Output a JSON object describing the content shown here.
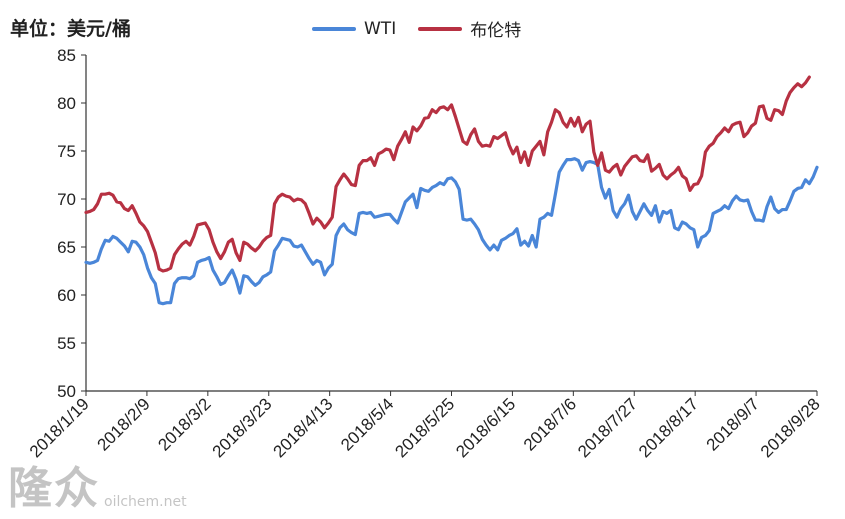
{
  "unit_label": "单位：美元/桶",
  "watermark": {
    "logo": "隆众",
    "url": "oilchem.net"
  },
  "colors": {
    "wti": "#4a86d8",
    "brent": "#b73142",
    "axis": "#333333"
  },
  "chart_data": {
    "type": "line",
    "xlabel": "",
    "ylabel": "",
    "ylim": [
      50,
      85
    ],
    "yticks": [
      50,
      55,
      60,
      65,
      70,
      75,
      80,
      85
    ],
    "xticks": [
      "2018/1/19",
      "2018/2/9",
      "2018/3/2",
      "2018/3/23",
      "2018/4/13",
      "2018/5/4",
      "2018/5/25",
      "2018/6/15",
      "2018/7/6",
      "2018/7/27",
      "2018/8/17",
      "2018/9/7",
      "2018/9/28"
    ],
    "legend_position": "top-center",
    "grid": false,
    "series": [
      {
        "name": "WTI",
        "color": "#4a86d8",
        "values": [
          63.4,
          63.3,
          63.4,
          63.6,
          64.8,
          65.7,
          65.6,
          66.1,
          65.9,
          65.5,
          65.1,
          64.5,
          65.6,
          65.5,
          65.0,
          64.2,
          62.8,
          61.8,
          61.2,
          59.2,
          59.1,
          59.2,
          59.2,
          61.2,
          61.7,
          61.8,
          61.8,
          61.7,
          62.0,
          63.4,
          63.6,
          63.7,
          63.9,
          62.6,
          61.9,
          61.1,
          61.3,
          62.0,
          62.6,
          61.6,
          60.2,
          62.0,
          61.9,
          61.4,
          61.0,
          61.3,
          61.9,
          62.1,
          62.4,
          64.6,
          65.2,
          65.9,
          65.8,
          65.7,
          65.1,
          65.0,
          65.2,
          64.5,
          63.8,
          63.2,
          63.6,
          63.4,
          62.1,
          62.8,
          63.2,
          66.2,
          67.0,
          67.4,
          66.8,
          66.5,
          66.3,
          68.5,
          68.6,
          68.5,
          68.6,
          68.1,
          68.2,
          68.3,
          68.4,
          68.4,
          67.9,
          67.5,
          68.6,
          69.7,
          70.1,
          70.5,
          69.1,
          71.1,
          70.9,
          70.8,
          71.2,
          71.4,
          71.7,
          71.5,
          72.1,
          72.2,
          71.8,
          71.0,
          67.9,
          67.8,
          67.9,
          67.4,
          66.8,
          65.8,
          65.2,
          64.7,
          65.2,
          64.7,
          65.7,
          65.9,
          66.2,
          66.4,
          66.9,
          65.2,
          65.6,
          65.1,
          66.2,
          65.0,
          67.9,
          68.1,
          68.5,
          68.3,
          70.5,
          72.8,
          73.5,
          74.1,
          74.1,
          74.2,
          74.0,
          73.0,
          73.8,
          73.9,
          73.8,
          73.6,
          71.2,
          70.1,
          71.0,
          68.8,
          68.1,
          69.0,
          69.5,
          70.4,
          68.7,
          67.9,
          68.7,
          69.5,
          68.8,
          68.3,
          69.3,
          67.6,
          68.7,
          68.5,
          68.8,
          67.0,
          66.8,
          67.6,
          67.4,
          67.0,
          66.8,
          65.0,
          66.0,
          66.2,
          66.7,
          68.5,
          68.7,
          68.9,
          69.3,
          69.0,
          69.8,
          70.3,
          69.9,
          69.8,
          69.9,
          68.7,
          67.8,
          67.8,
          67.7,
          69.2,
          70.2,
          69.0,
          68.6,
          68.9,
          68.9,
          69.8,
          70.8,
          71.1,
          71.2,
          72.0,
          71.6,
          72.3,
          73.3
        ]
      },
      {
        "name": "布伦特",
        "color": "#b73142",
        "values": [
          68.6,
          68.7,
          68.9,
          69.5,
          70.5,
          70.5,
          70.6,
          70.4,
          69.7,
          69.6,
          69.0,
          68.8,
          69.3,
          68.5,
          67.6,
          67.2,
          66.6,
          65.5,
          64.4,
          62.7,
          62.5,
          62.6,
          62.8,
          64.2,
          64.8,
          65.3,
          65.6,
          65.2,
          66.1,
          67.3,
          67.4,
          67.5,
          66.8,
          65.5,
          64.5,
          63.8,
          64.5,
          65.5,
          65.8,
          64.4,
          63.6,
          65.5,
          65.3,
          64.9,
          64.6,
          65.0,
          65.6,
          66.0,
          66.2,
          69.5,
          70.2,
          70.5,
          70.3,
          70.2,
          69.8,
          70.0,
          69.9,
          69.5,
          68.5,
          67.4,
          68.0,
          67.6,
          67.0,
          67.5,
          68.1,
          71.3,
          72.0,
          72.6,
          72.1,
          71.5,
          71.4,
          73.5,
          74.0,
          74.0,
          74.3,
          73.5,
          74.7,
          74.9,
          75.2,
          75.1,
          74.1,
          75.5,
          76.2,
          77.0,
          75.9,
          77.5,
          77.1,
          77.6,
          78.4,
          78.5,
          79.3,
          79.0,
          79.5,
          79.6,
          79.3,
          79.8,
          78.6,
          77.3,
          76.0,
          75.7,
          76.7,
          77.3,
          76.0,
          75.5,
          75.6,
          75.5,
          76.5,
          76.3,
          76.6,
          76.9,
          75.6,
          74.7,
          75.4,
          73.8,
          74.9,
          73.5,
          75.0,
          75.5,
          76.0,
          74.6,
          77.0,
          78.0,
          79.3,
          79.0,
          78.0,
          77.5,
          78.4,
          77.6,
          78.5,
          77.0,
          77.8,
          78.1,
          74.9,
          73.5,
          74.8,
          73.0,
          72.8,
          73.3,
          73.6,
          72.5,
          73.4,
          73.9,
          74.4,
          74.5,
          74.0,
          73.9,
          74.6,
          72.9,
          73.2,
          73.6,
          72.5,
          72.1,
          72.5,
          72.8,
          73.3,
          72.4,
          72.1,
          70.9,
          71.5,
          71.6,
          72.4,
          74.9,
          75.5,
          75.8,
          76.5,
          76.9,
          77.4,
          77.0,
          77.7,
          77.9,
          78.0,
          76.5,
          76.9,
          77.6,
          77.9,
          79.6,
          79.7,
          78.4,
          78.2,
          79.3,
          79.2,
          78.8,
          80.2,
          81.1,
          81.6,
          82.0,
          81.7,
          82.1,
          82.7
        ]
      }
    ]
  }
}
